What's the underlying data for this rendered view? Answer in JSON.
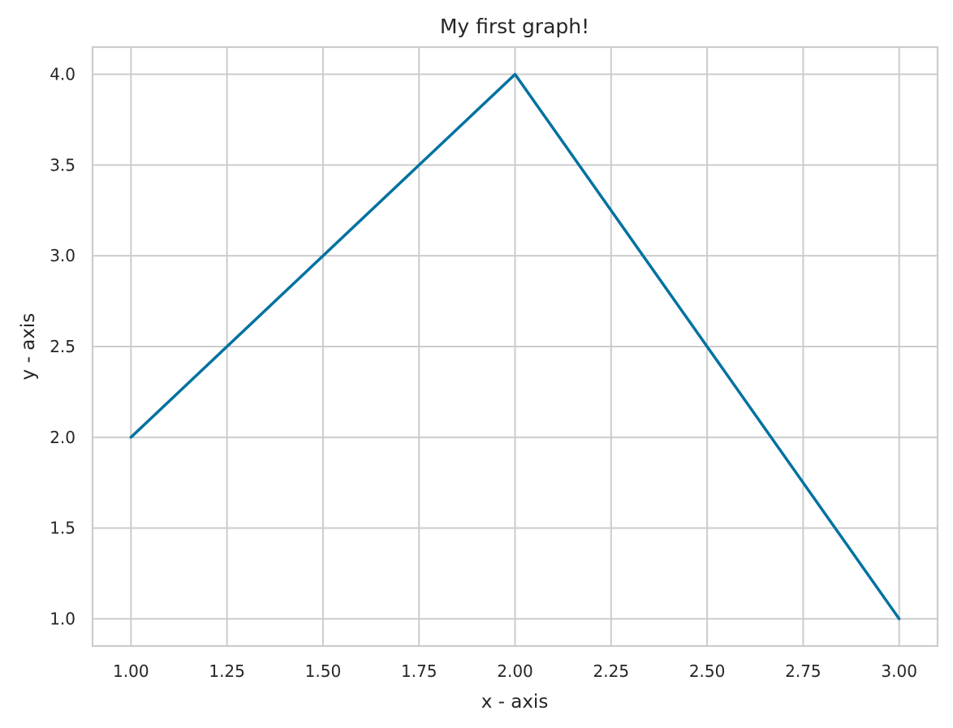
{
  "chart_data": {
    "type": "line",
    "title": "My first graph!",
    "xlabel": "x - axis",
    "ylabel": "y - axis",
    "x": [
      1,
      2,
      3
    ],
    "series": [
      {
        "values": [
          2,
          4,
          1
        ],
        "color": "#0072a0"
      }
    ],
    "xlim": [
      0.9,
      3.1
    ],
    "ylim": [
      0.85,
      4.15
    ],
    "xticks": [
      1.0,
      1.25,
      1.5,
      1.75,
      2.0,
      2.25,
      2.5,
      2.75,
      3.0
    ],
    "xtick_labels": [
      "1.00",
      "1.25",
      "1.50",
      "1.75",
      "2.00",
      "2.25",
      "2.50",
      "2.75",
      "3.00"
    ],
    "yticks": [
      1.0,
      1.5,
      2.0,
      2.5,
      3.0,
      3.5,
      4.0
    ],
    "ytick_labels": [
      "1.0",
      "1.5",
      "2.0",
      "2.5",
      "3.0",
      "3.5",
      "4.0"
    ],
    "grid": true,
    "grid_color": "#cccccc",
    "text_color": "#262626"
  }
}
